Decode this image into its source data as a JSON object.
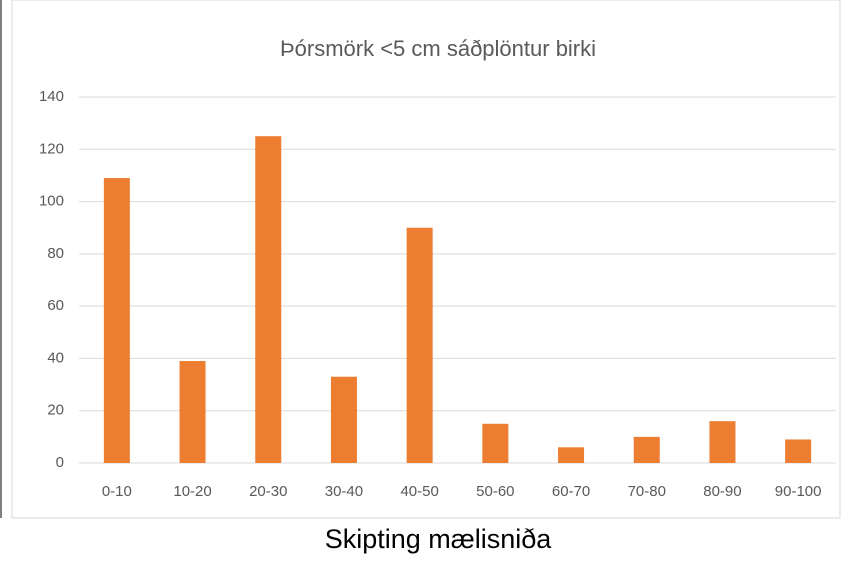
{
  "chart_data": {
    "type": "bar",
    "title": "Þórsmörk <5 cm sáðplöntur birki",
    "xlabel": "Skipting mælisniða",
    "categories": [
      "0-10",
      "10-20",
      "20-30",
      "30-40",
      "40-50",
      "50-60",
      "60-70",
      "70-80",
      "80-90",
      "90-100"
    ],
    "values": [
      109,
      39,
      125,
      33,
      90,
      15,
      6,
      10,
      16,
      9
    ],
    "color": "#ed7d31",
    "ylim": [
      0,
      140
    ],
    "yticks": [
      0,
      20,
      40,
      60,
      80,
      100,
      120,
      140
    ],
    "grid": true
  }
}
